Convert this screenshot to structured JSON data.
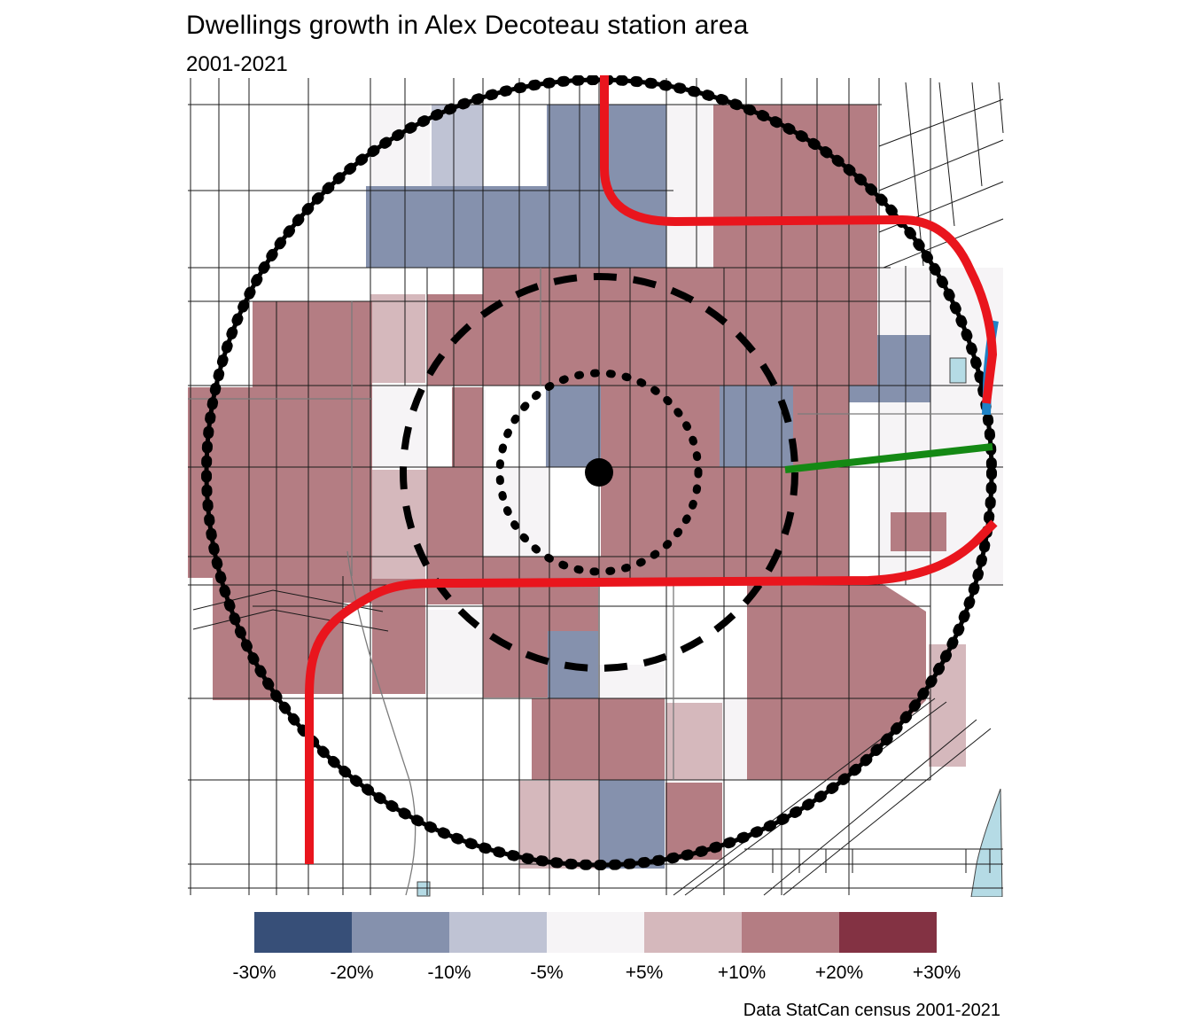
{
  "header": {
    "title": "Dwellings growth in Alex Decoteau station area",
    "subtitle": "2001-2021"
  },
  "caption": "Data StatCan census 2001-2021",
  "legend": {
    "swatches": [
      "#374F78",
      "#8591AD",
      "#BFC3D4",
      "#F6F4F6",
      "#D5B8BC",
      "#B47D83",
      "#833243"
    ],
    "labels": [
      "-30%",
      "-20%",
      "-10%",
      "-5%",
      "+5%",
      "+10%",
      "+20%",
      "+30%"
    ]
  },
  "colors": {
    "red_line": "#E9151D",
    "green_line": "#148914",
    "river_line": "#1E82C6",
    "water_fill": "#B5DBE5",
    "boundary": "#000000"
  }
}
